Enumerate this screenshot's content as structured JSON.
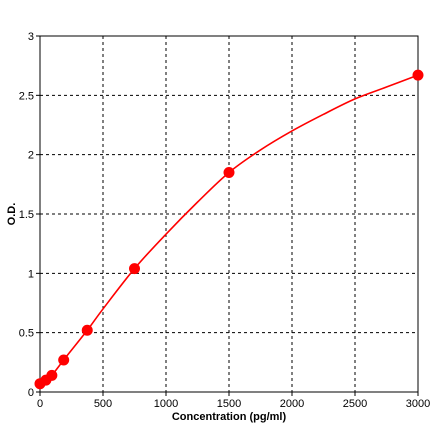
{
  "chart_data": {
    "type": "line",
    "title": "",
    "xlabel": "Concentration (pg/ml)",
    "ylabel": "O.D.",
    "xlim": [
      0,
      3000
    ],
    "ylim": [
      0,
      3
    ],
    "x_ticks": [
      "0",
      "500",
      "1000",
      "1500",
      "2000",
      "2500",
      "3000"
    ],
    "y_ticks": [
      "0",
      "0.5",
      "1",
      "1.5",
      "2",
      "2.5",
      "3"
    ],
    "grid": true,
    "grid_style": "dashed",
    "legend": "none",
    "colors": {
      "series": "#ff0000",
      "grid": "#000000",
      "axis": "#000000"
    },
    "series": [
      {
        "points": [
          {
            "x": 0,
            "y": 0.07
          },
          {
            "x": 47,
            "y": 0.1
          },
          {
            "x": 94,
            "y": 0.14
          },
          {
            "x": 188,
            "y": 0.27
          },
          {
            "x": 375,
            "y": 0.52
          },
          {
            "x": 750,
            "y": 1.04
          },
          {
            "x": 1500,
            "y": 1.85
          },
          {
            "x": 3000,
            "y": 2.67
          }
        ],
        "curve": [
          {
            "x": 0,
            "y": 0.07
          },
          {
            "x": 47,
            "y": 0.1
          },
          {
            "x": 94,
            "y": 0.14
          },
          {
            "x": 188,
            "y": 0.27
          },
          {
            "x": 375,
            "y": 0.52
          },
          {
            "x": 500,
            "y": 0.7
          },
          {
            "x": 750,
            "y": 1.04
          },
          {
            "x": 1000,
            "y": 1.33
          },
          {
            "x": 1250,
            "y": 1.6
          },
          {
            "x": 1500,
            "y": 1.85
          },
          {
            "x": 1750,
            "y": 2.04
          },
          {
            "x": 2000,
            "y": 2.2
          },
          {
            "x": 2250,
            "y": 2.34
          },
          {
            "x": 2500,
            "y": 2.47
          },
          {
            "x": 2750,
            "y": 2.57
          },
          {
            "x": 3000,
            "y": 2.67
          }
        ]
      }
    ]
  }
}
